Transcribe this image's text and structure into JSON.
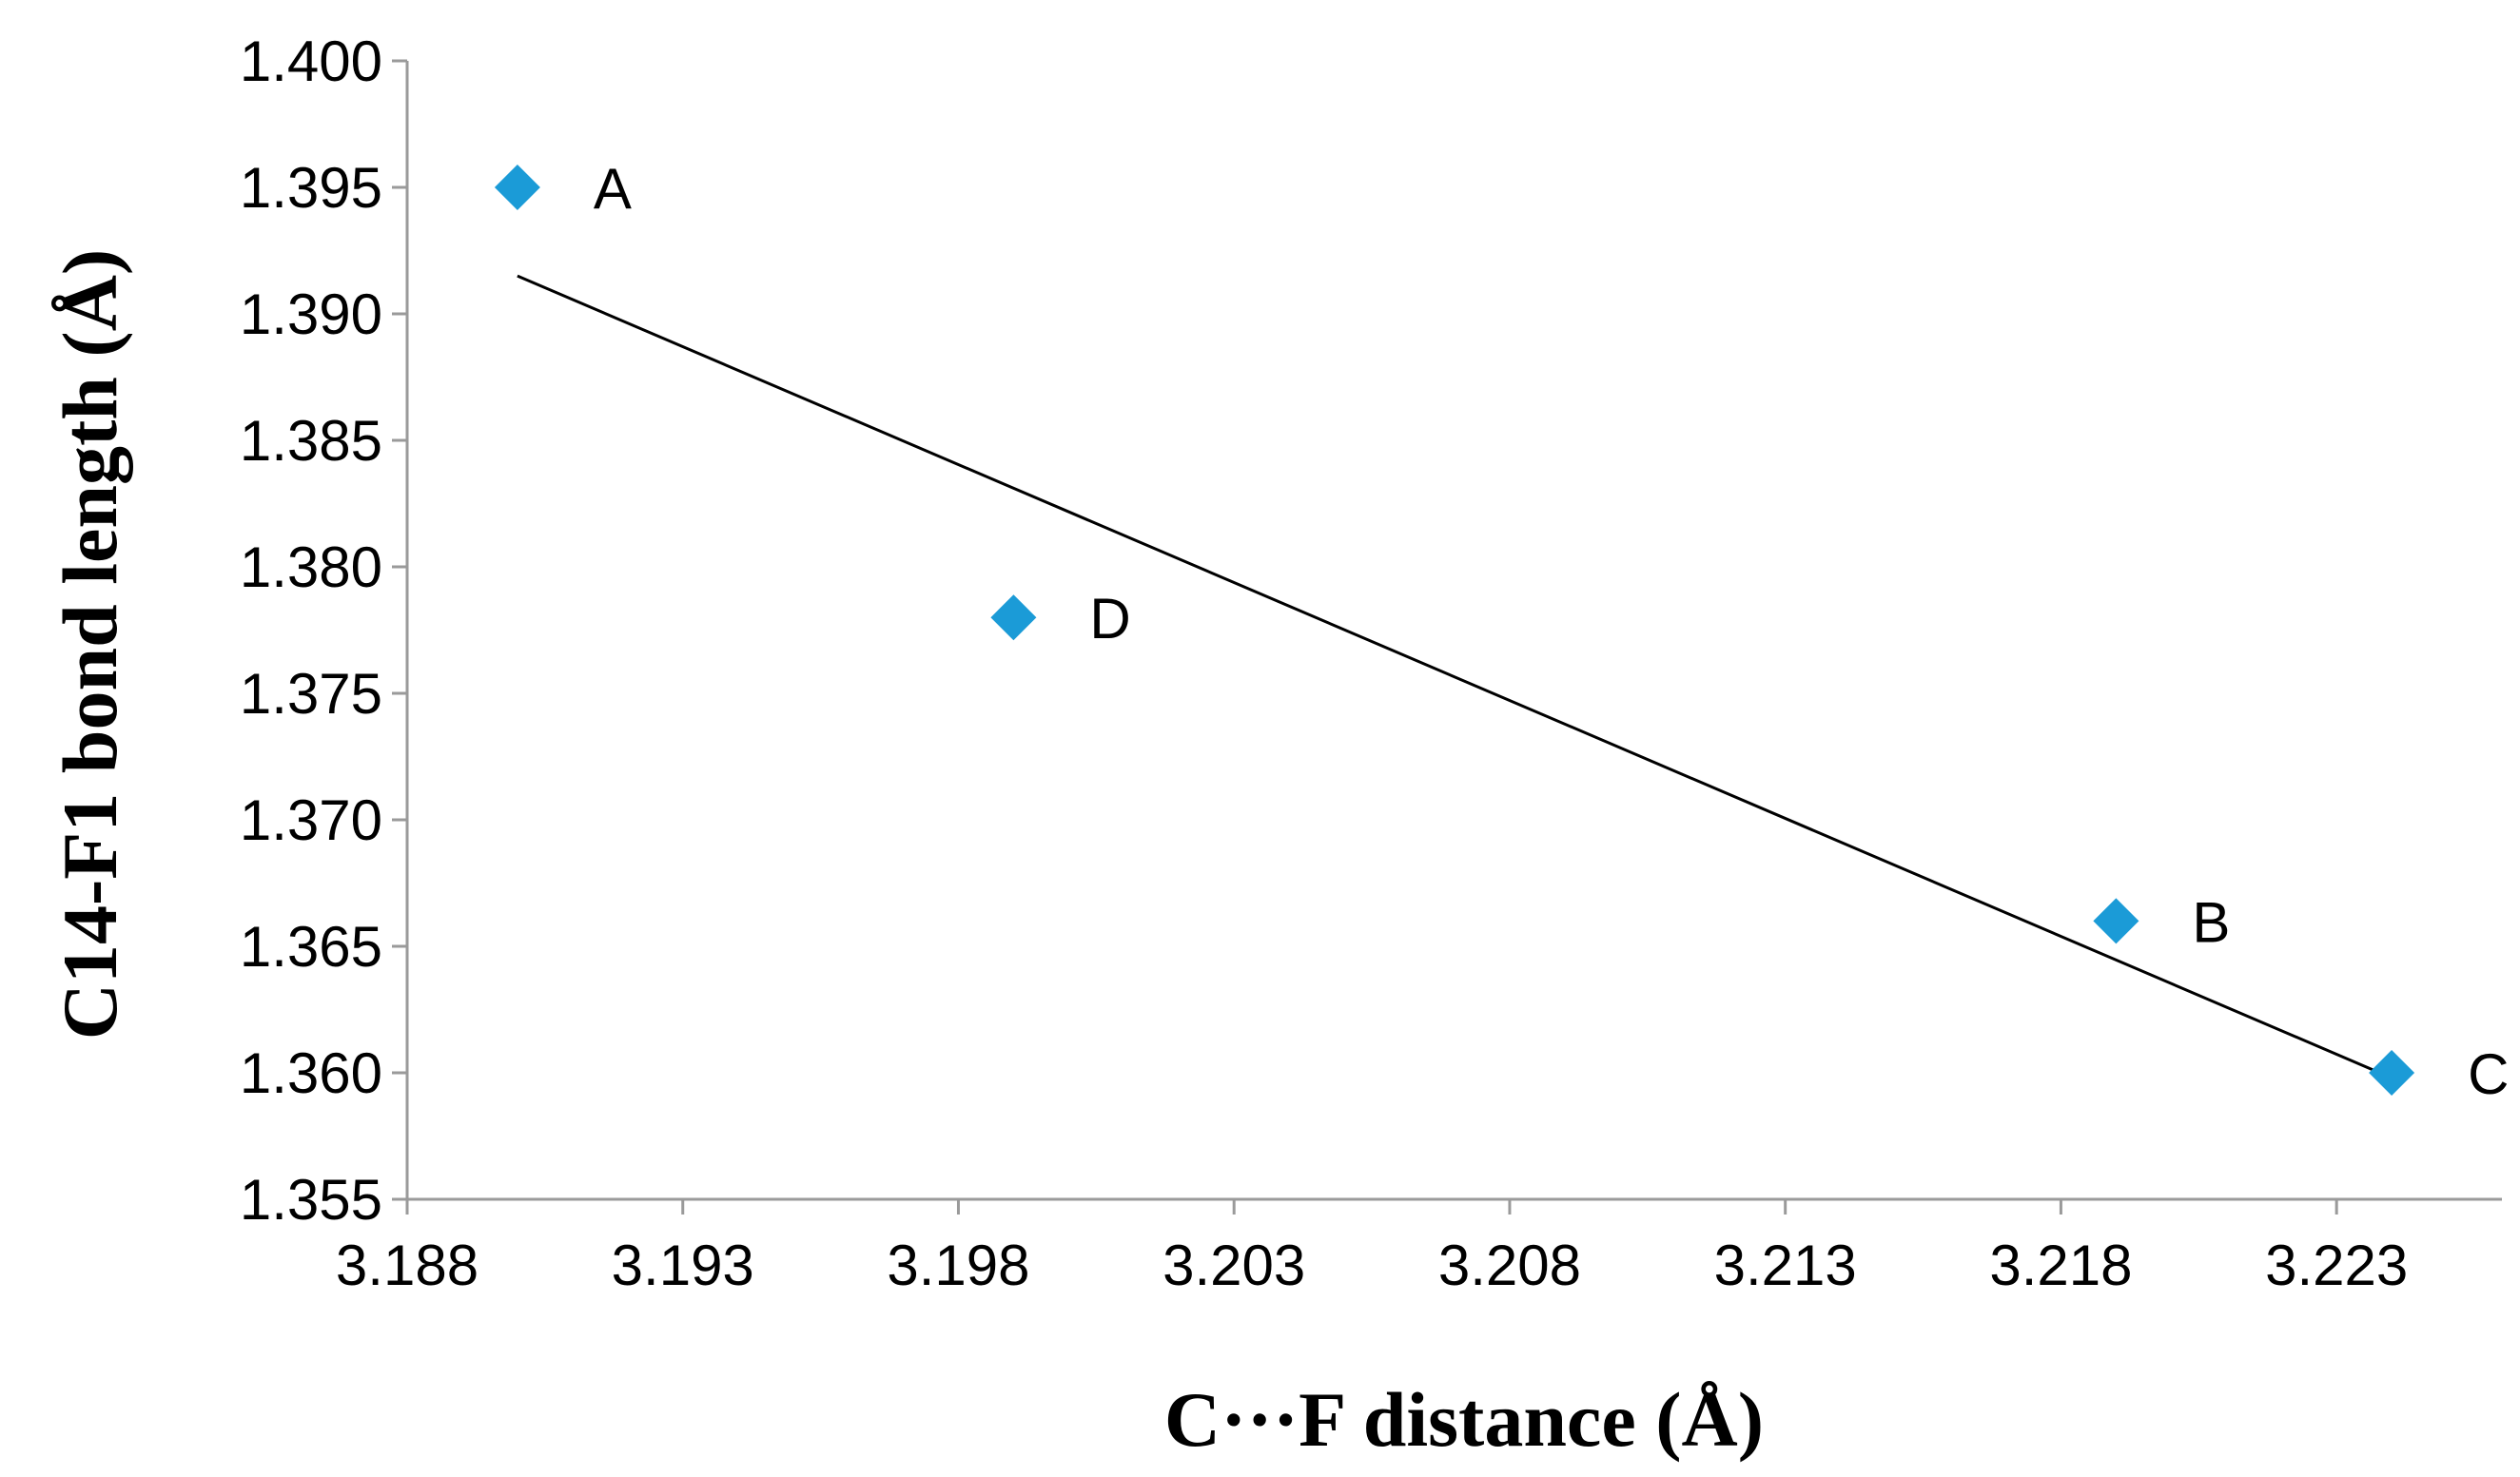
{
  "chart_data": {
    "type": "scatter",
    "title": "",
    "xlabel": "C···F distance (Å)",
    "ylabel": "C14-F1 bond length (Å)",
    "xlim": [
      3.188,
      3.226
    ],
    "ylim": [
      1.355,
      1.4
    ],
    "xticks": [
      "3.188",
      "3.193",
      "3.198",
      "3.203",
      "3.208",
      "3.213",
      "3.218",
      "3.223"
    ],
    "yticks": [
      "1.400",
      "1.395",
      "1.390",
      "1.385",
      "1.380",
      "1.375",
      "1.370",
      "1.365",
      "1.360",
      "1.355"
    ],
    "grid": false,
    "legend": "none",
    "marker": "diamond",
    "marker_color": "#1b9bd7",
    "trendline_color": "#000000",
    "points": [
      {
        "label": "A",
        "x": 3.19,
        "y": 1.395
      },
      {
        "label": "D",
        "x": 3.199,
        "y": 1.378
      },
      {
        "label": "B",
        "x": 3.219,
        "y": 1.366
      },
      {
        "label": "C",
        "x": 3.224,
        "y": 1.36
      }
    ],
    "trendline": {
      "type": "linear",
      "x": [
        3.19,
        3.224
      ],
      "y": [
        1.3915,
        1.3598
      ]
    }
  }
}
